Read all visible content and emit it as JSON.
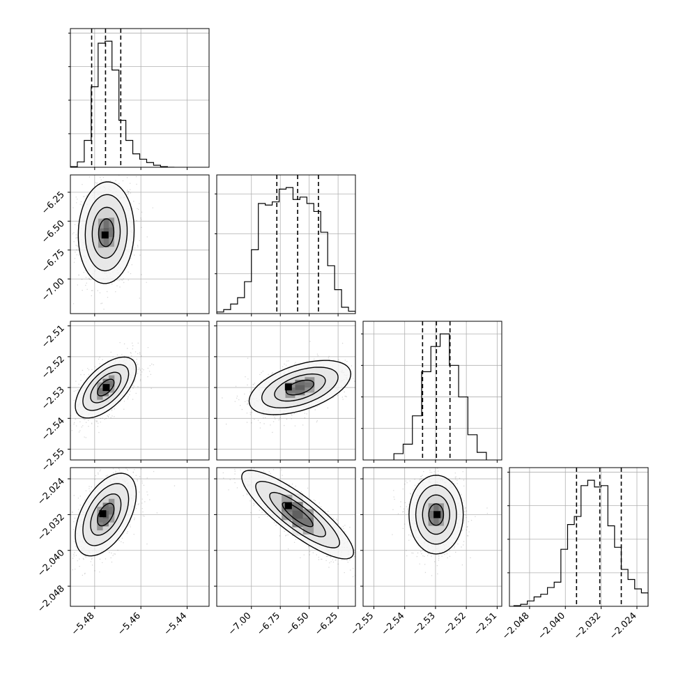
{
  "chart_data": {
    "type": "corner",
    "grid": true,
    "parameters": [
      {
        "ticks": [
          -5.48,
          -5.46,
          -5.44
        ],
        "tick_labels": [
          "−5.48",
          "−5.46",
          "−5.44"
        ],
        "range": [
          -5.4905,
          -5.4305
        ],
        "quantiles": [
          -5.4813,
          -5.4753,
          -5.4687
        ],
        "hist_bins": [
          -5.4905,
          -5.4875,
          -5.4845,
          -5.4815,
          -5.4785,
          -5.4755,
          -5.4725,
          -5.4695,
          -5.4665,
          -5.4635,
          -5.4605,
          -5.4575,
          -5.4545,
          -5.4515,
          -5.4485,
          -5.4455
        ],
        "hist_counts": [
          1,
          8,
          40,
          120,
          185,
          188,
          145,
          70,
          40,
          20,
          12,
          7,
          3,
          1,
          0
        ]
      },
      {
        "ticks": [
          -7.0,
          -6.75,
          -6.5,
          -6.25
        ],
        "tick_labels": [
          "−7.00",
          "−6.75",
          "−6.50",
          "−6.25"
        ],
        "range": [
          -7.3,
          -6.1
        ],
        "quantiles": [
          -6.78,
          -6.6,
          -6.42
        ],
        "hist_bins": [
          -7.3,
          -7.24,
          -7.18,
          -7.12,
          -7.06,
          -7.0,
          -6.94,
          -6.88,
          -6.82,
          -6.76,
          -6.7,
          -6.64,
          -6.58,
          -6.52,
          -6.46,
          -6.4,
          -6.34,
          -6.28,
          -6.22,
          -6.16,
          -6.1
        ],
        "hist_counts": [
          2,
          5,
          12,
          20,
          40,
          80,
          138,
          136,
          140,
          156,
          158,
          143,
          146,
          138,
          128,
          102,
          60,
          30,
          8,
          3
        ]
      },
      {
        "ticks": [
          -2.55,
          -2.54,
          -2.53,
          -2.52,
          -2.51
        ],
        "tick_labels": [
          "−2.55",
          "−2.54",
          "−2.53",
          "−2.52",
          "−2.51"
        ],
        "range": [
          -2.5535,
          -2.5085
        ],
        "quantiles": [
          -2.5342,
          -2.5297,
          -2.5253
        ],
        "hist_bins": [
          -2.5435,
          -2.5405,
          -2.5375,
          -2.5345,
          -2.5315,
          -2.5285,
          -2.5255,
          -2.5225,
          -2.5195,
          -2.5165,
          -2.5135
        ],
        "hist_counts": [
          10,
          25,
          70,
          140,
          180,
          200,
          150,
          100,
          40,
          12
        ]
      },
      {
        "ticks": [
          -2.048,
          -2.04,
          -2.032,
          -2.024
        ],
        "tick_labels": [
          "−2.048",
          "−2.040",
          "−2.032",
          "−2.024"
        ],
        "range": [
          -2.0525,
          -2.0215
        ],
        "quantiles": [
          -2.0375,
          -2.0323,
          -2.0275
        ],
        "hist_bins": [
          -2.0515,
          -2.05,
          -2.0485,
          -2.047,
          -2.0455,
          -2.044,
          -2.0425,
          -2.041,
          -2.0395,
          -2.038,
          -2.0365,
          -2.035,
          -2.0335,
          -2.032,
          -2.0305,
          -2.029,
          -2.0275,
          -2.026,
          -2.0245,
          -2.023,
          -2.0215
        ],
        "hist_counts": [
          1,
          3,
          8,
          14,
          18,
          28,
          36,
          85,
          122,
          134,
          180,
          188,
          178,
          180,
          120,
          88,
          55,
          40,
          26,
          20
        ]
      }
    ],
    "pairs": [
      {
        "row": 1,
        "col": 0,
        "center": [
          -5.475,
          -6.6
        ],
        "sigma": [
          0.0055,
          0.2
        ],
        "corr": 0.05,
        "mode": [
          -5.4755,
          -6.62
        ]
      },
      {
        "row": 2,
        "col": 0,
        "center": [
          -5.4752,
          -2.53
        ],
        "sigma": [
          0.006,
          0.0045
        ],
        "corr": 0.6,
        "mode": [
          -5.475,
          -2.53
        ]
      },
      {
        "row": 2,
        "col": 1,
        "center": [
          -6.58,
          -2.53
        ],
        "sigma": [
          0.2,
          0.004
        ],
        "corr": 0.5,
        "mode": [
          -6.68,
          -2.5298
        ]
      },
      {
        "row": 3,
        "col": 0,
        "center": [
          -5.4752,
          -2.032
        ],
        "sigma": [
          0.006,
          0.0042
        ],
        "corr": 0.5,
        "mode": [
          -5.4765,
          -2.0318
        ]
      },
      {
        "row": 3,
        "col": 1,
        "center": [
          -6.6,
          -2.032
        ],
        "sigma": [
          0.22,
          0.0045
        ],
        "corr": -0.85,
        "mode": [
          -6.68,
          -2.03
        ]
      },
      {
        "row": 3,
        "col": 2,
        "center": [
          -2.5298,
          -2.032
        ],
        "sigma": [
          0.004,
          0.004
        ],
        "corr": 0.0,
        "mode": [
          -2.5295,
          -2.032
        ]
      }
    ]
  }
}
